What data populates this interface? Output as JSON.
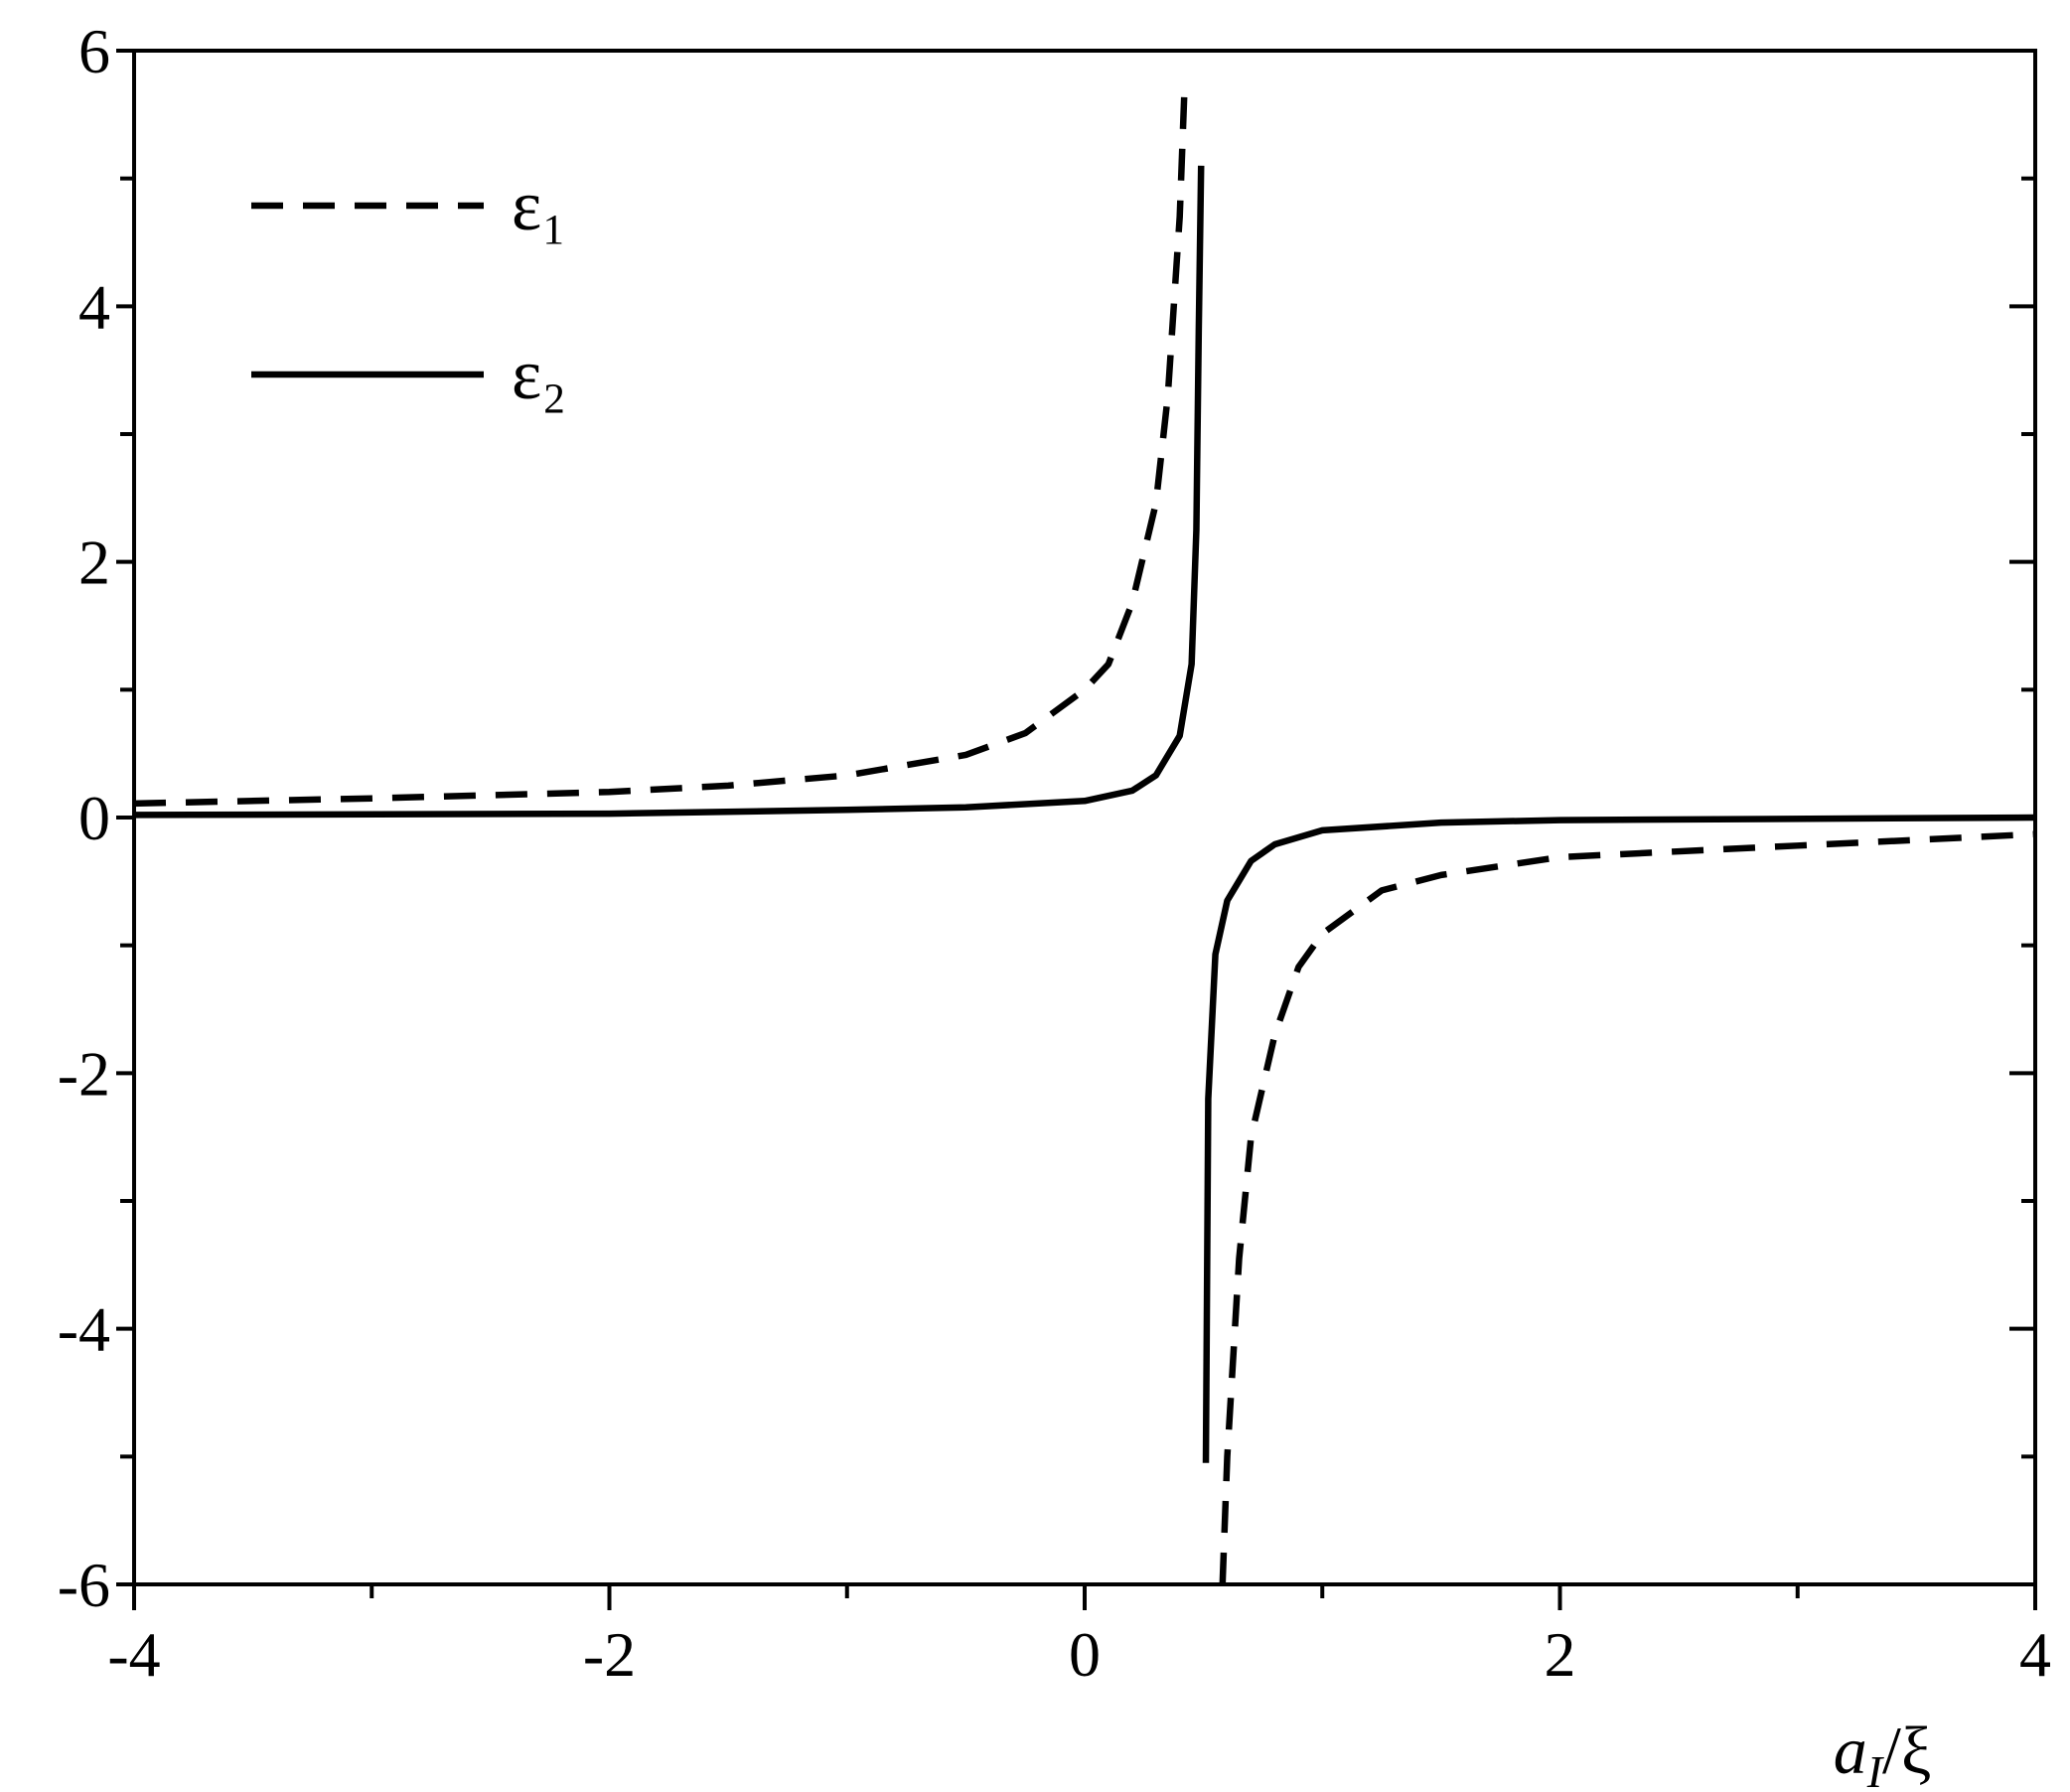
{
  "chart_data": {
    "type": "line",
    "xlabel": [
      "a",
      "I",
      "/ξ"
    ],
    "xlim": [
      -4,
      4
    ],
    "xticks": [
      -4,
      -2,
      0,
      2,
      4
    ],
    "xminorticks": [
      -3,
      -1,
      1,
      3
    ],
    "ylim": [
      -6,
      6
    ],
    "yticks": [
      -6,
      -4,
      -2,
      0,
      2,
      4,
      6
    ],
    "yminorticks": [
      -5,
      -3,
      -1,
      1,
      3,
      5
    ],
    "grid": false,
    "legend": "upper left",
    "series": [
      {
        "name": "ε₁",
        "color": "#000000",
        "dash": true,
        "x": [
          -4,
          -3,
          -2,
          -1.5,
          -1,
          -0.5,
          -0.25,
          0,
          0.1,
          0.2,
          0.3,
          0.35,
          0.4,
          0.42,
          0.5,
          0.58,
          0.6,
          0.65,
          0.7,
          0.8,
          0.9,
          1,
          1.25,
          1.5,
          2,
          3,
          4
        ],
        "values": [
          0.11,
          0.15,
          0.2,
          0.25,
          0.33,
          0.49,
          0.66,
          1.0,
          1.2,
          1.68,
          2.46,
          3.3,
          4.7,
          5.7,
          null,
          -6,
          -5,
          -3.45,
          -2.5,
          -1.7,
          -1.17,
          -0.91,
          -0.57,
          -0.45,
          -0.31,
          -0.22,
          -0.13
        ]
      },
      {
        "name": "ε₂",
        "color": "#000000",
        "dash": false,
        "x": [
          -4,
          -2,
          -1,
          -0.5,
          0,
          0.2,
          0.3,
          0.4,
          0.45,
          0.47,
          0.48,
          0.49,
          0.5,
          0.51,
          0.52,
          0.55,
          0.6,
          0.7,
          0.8,
          1,
          1.5,
          2,
          4
        ],
        "values": [
          0.02,
          0.03,
          0.06,
          0.08,
          0.13,
          0.21,
          0.33,
          0.64,
          1.2,
          2.25,
          3.8,
          5.1,
          null,
          -5.05,
          -2.2,
          -1.07,
          -0.65,
          -0.34,
          -0.21,
          -0.1,
          -0.04,
          -0.02,
          0
        ]
      }
    ]
  }
}
